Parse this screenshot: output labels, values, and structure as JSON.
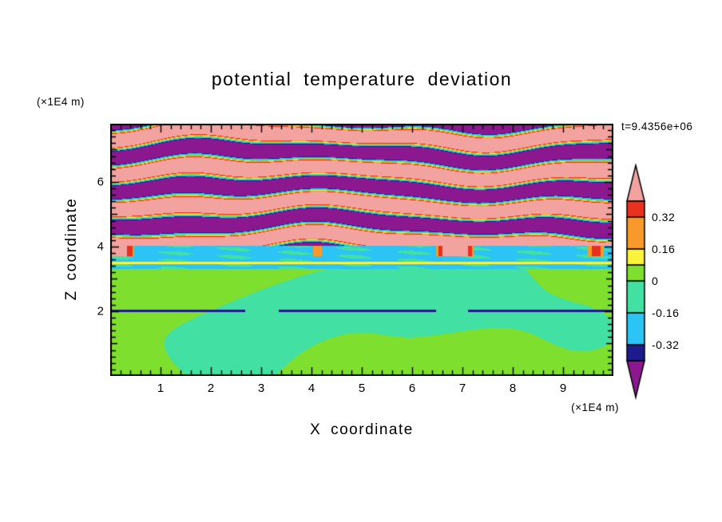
{
  "title": "potential temperature deviation",
  "time_label": "t=9.4356e+06",
  "axes": {
    "x_label": "X coordinate",
    "x_unit_label": "(×1E4 m)",
    "y_label": "Z coordinate",
    "y_unit_label": "(×1E4 m)",
    "x_ticks": [
      1,
      2,
      3,
      4,
      5,
      6,
      7,
      8,
      9
    ],
    "y_ticks": [
      2,
      4,
      6
    ],
    "x_minor_step": 0.2,
    "y_minor_step": 0.2,
    "x_range": [
      0,
      10
    ],
    "y_range": [
      0,
      7.8
    ]
  },
  "chart_data": {
    "type": "heatmap",
    "title": "potential temperature deviation",
    "xlabel": "X coordinate (×1E4 m)",
    "ylabel": "Z coordinate (×1E4 m)",
    "time_annotation": "t=9.4356e+06",
    "x_range": [
      0,
      10
    ],
    "z_range": [
      0,
      7.8
    ],
    "colorbar": {
      "range": [
        -0.4,
        0.4
      ],
      "over": {
        "color": "#F2A3A0"
      },
      "under": {
        "color": "#8C1890"
      },
      "segments": [
        {
          "from": 0.32,
          "to": 0.4,
          "color": "#E93120"
        },
        {
          "from": 0.16,
          "to": 0.32,
          "color": "#F79A2B"
        },
        {
          "from": 0.08,
          "to": 0.16,
          "color": "#FAF33B"
        },
        {
          "from": 0.0,
          "to": 0.08,
          "color": "#7FDF2E"
        },
        {
          "from": -0.16,
          "to": 0.0,
          "color": "#42E0A2"
        },
        {
          "from": -0.32,
          "to": -0.16,
          "color": "#2CC4F4"
        },
        {
          "from": -0.4,
          "to": -0.32,
          "color": "#1D1B8E"
        }
      ],
      "ticks": [
        {
          "value": 0.32,
          "label": "0.32"
        },
        {
          "value": 0.16,
          "label": "0.16"
        },
        {
          "value": 0.0,
          "label": "0"
        },
        {
          "value": -0.16,
          "label": "-0.16"
        },
        {
          "value": -0.32,
          "label": "-0.32"
        }
      ]
    },
    "field_description": "Filled-contour snapshot of potential temperature deviation. Above z≈4 (×1E4 m): alternating wavy horizontal bands saturating the scale (pink > 0.4, purple < -0.4) with thin red/orange/yellow/cyan filaments at band interfaces. A cyan layer (≈ -0.2) spans z≈3.3–4 with small pink/red blobs near its top and a thin yellow line near z≈3.5. Below z≈3.3 values stay near zero, forming swirling spring-green (slightly negative) and lime-green (slightly positive) patterns with a thin dark navy line near z≈2.",
    "field_generator": {
      "upper_zmin": 4.02,
      "trans_zmin": 3.3,
      "band_freq": 5.8,
      "upper_amp": 0.55,
      "sharpness": 2.6,
      "trans_value": -0.2,
      "lower_amp": 0.055,
      "lower_base": 0.004,
      "dark_line_z": 2.02,
      "dark_line_value": -0.36,
      "yellow_line_z": 3.5,
      "yellow_line_value": 0.12,
      "blob_value": 0.45
    }
  }
}
